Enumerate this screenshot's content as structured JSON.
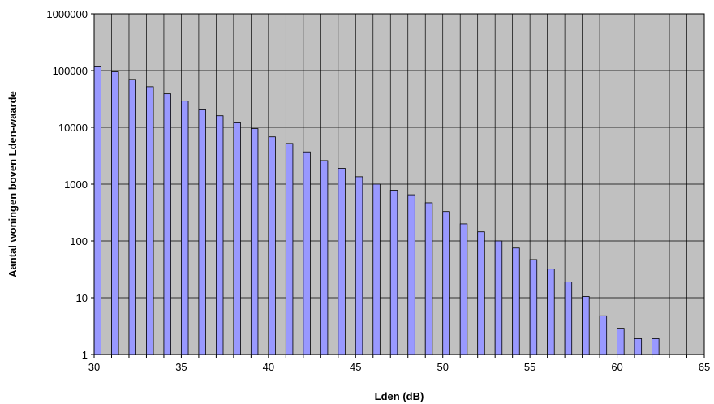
{
  "chart_data": {
    "type": "bar",
    "title": "",
    "xlabel": "Lden  (dB)",
    "ylabel": "Aantal woningen boven Lden-waarde",
    "y_scale": "log",
    "ylim": [
      1,
      1000000
    ],
    "xlim": [
      30,
      65
    ],
    "x_ticks": [
      "30",
      "35",
      "40",
      "45",
      "50",
      "55",
      "60",
      "65"
    ],
    "y_ticks": [
      "1",
      "10",
      "100",
      "1000",
      "10000",
      "100000",
      "1000000"
    ],
    "grid": true,
    "legend": "none",
    "colors": {
      "plot_bg": "#c0c0c0",
      "bar_fill": "#9999ff",
      "bar_stroke": "#000000",
      "grid": "#000000"
    },
    "x": [
      30,
      31,
      32,
      33,
      34,
      35,
      36,
      37,
      38,
      39,
      40,
      41,
      42,
      43,
      44,
      45,
      46,
      47,
      48,
      49,
      50,
      51,
      52,
      53,
      54,
      55,
      56,
      57,
      58,
      59,
      60,
      61,
      62
    ],
    "values": [
      120000,
      95000,
      70000,
      52000,
      39000,
      29000,
      21000,
      16000,
      12000,
      9500,
      6800,
      5200,
      3700,
      2600,
      1900,
      1350,
      1000,
      780,
      650,
      470,
      330,
      200,
      145,
      100,
      75,
      47,
      32,
      19,
      10.5,
      4.8,
      2.9,
      1.9,
      1.9
    ]
  }
}
